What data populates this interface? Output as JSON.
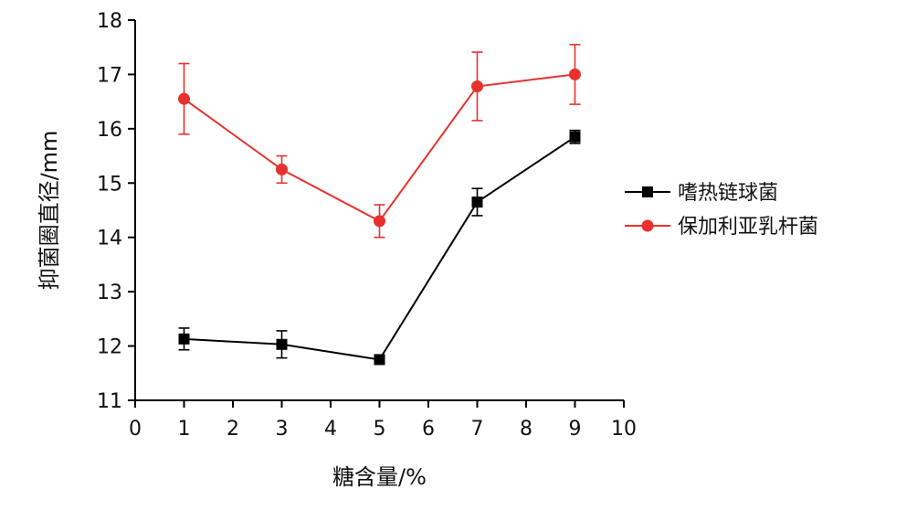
{
  "chart_data": {
    "type": "line",
    "xlabel": "糖含量/%",
    "ylabel": "抑菌圈直径/mm",
    "xlim": [
      0,
      10
    ],
    "ylim": [
      11,
      18
    ],
    "xticks": [
      "0",
      "1",
      "2",
      "3",
      "4",
      "5",
      "6",
      "7",
      "8",
      "9",
      "10"
    ],
    "yticks": [
      "11",
      "12",
      "13",
      "14",
      "15",
      "16",
      "17",
      "18"
    ],
    "x": [
      1,
      3,
      5,
      7,
      9
    ],
    "series": [
      {
        "name": "嗜热链球菌",
        "color": "#000000",
        "marker": "square",
        "values": [
          12.13,
          12.03,
          11.75,
          14.65,
          15.85
        ],
        "errors": [
          0.2,
          0.25,
          0.05,
          0.25,
          0.12
        ]
      },
      {
        "name": "保加利亚乳杆菌",
        "color": "#e8302e",
        "marker": "circle",
        "values": [
          16.55,
          15.25,
          14.3,
          16.78,
          17.0
        ],
        "errors": [
          0.65,
          0.25,
          0.3,
          0.63,
          0.55
        ]
      }
    ],
    "legend_position": "right",
    "grid": false
  }
}
